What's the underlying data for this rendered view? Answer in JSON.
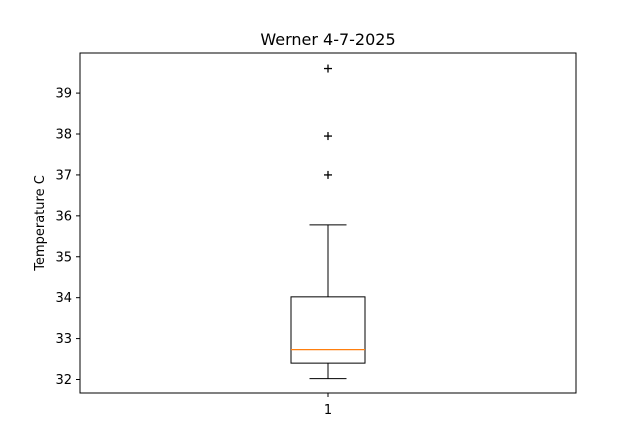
{
  "chart_data": {
    "type": "boxplot",
    "title": "Werner 4-7-2025",
    "xlabel": "",
    "ylabel": "Temperature C",
    "categories": [
      "1"
    ],
    "ylim": [
      31.67,
      39.98
    ],
    "yticks": [
      32,
      33,
      34,
      35,
      36,
      37,
      38,
      39
    ],
    "boxes": [
      {
        "label": "1",
        "whisker_low": 32.02,
        "q1": 32.4,
        "median": 32.73,
        "q3": 34.02,
        "whisker_high": 35.78,
        "fliers": [
          37.0,
          37.95,
          39.6
        ]
      }
    ],
    "grid": false,
    "colors": {
      "box": "#000000",
      "median": "#ff7f0e",
      "flier": "#000000"
    }
  }
}
